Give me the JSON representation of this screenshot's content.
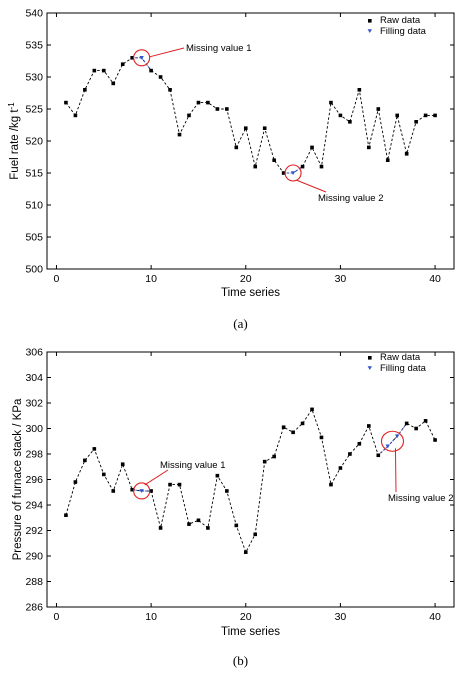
{
  "chart_data": [
    {
      "id": "a",
      "panel_label": "(a)",
      "type": "line",
      "xlabel": "Time series",
      "ylabel": "Fuel rate /kg t",
      "ylabel_sup": "-1",
      "xlim": [
        -1,
        42
      ],
      "ylim": [
        500,
        540
      ],
      "xticks": [
        0,
        10,
        20,
        30,
        40
      ],
      "yticks": [
        500,
        505,
        510,
        515,
        520,
        525,
        530,
        535,
        540
      ],
      "legend": {
        "position": "top-right",
        "raw_label": "Raw data",
        "fill_label": "Filling data"
      },
      "raw_color": "#000000",
      "fill_color": "#3355cc",
      "annotation_color": "#e02020",
      "series": [
        {
          "name": "Raw data",
          "x": [
            1,
            2,
            3,
            4,
            5,
            6,
            7,
            8,
            10,
            11,
            12,
            13,
            14,
            15,
            16,
            17,
            18,
            19,
            20,
            21,
            22,
            23,
            24,
            26,
            27,
            28,
            29,
            30,
            31,
            32,
            33,
            34,
            35,
            36,
            37,
            38,
            39,
            40
          ],
          "y": [
            526,
            524,
            528,
            531,
            531,
            529,
            532,
            533,
            531,
            530,
            528,
            521,
            524,
            526,
            526,
            525,
            525,
            519,
            522,
            516,
            522,
            517,
            515,
            516,
            519,
            516,
            526,
            524,
            523,
            528,
            519,
            525,
            517,
            524,
            518,
            523,
            524,
            524
          ]
        },
        {
          "name": "Filling data",
          "x": [
            9,
            25
          ],
          "y": [
            533,
            515
          ]
        }
      ],
      "annotations": [
        {
          "text": "Missing value 1",
          "x": 9,
          "y": 533,
          "label_side": "right"
        },
        {
          "text": "Missing value 2",
          "x": 25,
          "y": 515,
          "label_side": "below"
        }
      ]
    },
    {
      "id": "b",
      "panel_label": "(b)",
      "type": "line",
      "xlabel": "Time series",
      "ylabel": "Pressure of furnace stack / KPa",
      "ylabel_sup": "",
      "xlim": [
        -1,
        42
      ],
      "ylim": [
        286,
        306
      ],
      "xticks": [
        0,
        10,
        20,
        30,
        40
      ],
      "yticks": [
        286,
        288,
        290,
        292,
        294,
        296,
        298,
        300,
        302,
        304,
        306
      ],
      "legend": {
        "position": "top-right",
        "raw_label": "Raw data",
        "fill_label": "Filling data"
      },
      "raw_color": "#000000",
      "fill_color": "#3355cc",
      "annotation_color": "#e02020",
      "series": [
        {
          "name": "Raw data",
          "x": [
            1,
            2,
            3,
            4,
            5,
            6,
            7,
            8,
            10,
            11,
            12,
            13,
            14,
            15,
            16,
            17,
            18,
            19,
            20,
            21,
            22,
            23,
            24,
            25,
            26,
            27,
            28,
            29,
            30,
            31,
            32,
            33,
            34,
            37,
            38,
            39,
            40
          ],
          "y": [
            293.2,
            295.8,
            297.5,
            298.4,
            296.4,
            295.1,
            297.2,
            295.2,
            295.1,
            292.2,
            295.6,
            295.6,
            292.5,
            292.8,
            292.2,
            296.3,
            295.1,
            292.4,
            290.3,
            291.7,
            297.4,
            297.8,
            300.1,
            299.7,
            300.4,
            301.5,
            299.3,
            295.6,
            296.9,
            298.0,
            298.8,
            300.2,
            297.9,
            300.4,
            300.0,
            300.6,
            299.1
          ]
        },
        {
          "name": "Filling data",
          "x": [
            9,
            35,
            36
          ],
          "y": [
            295.1,
            298.6,
            299.4
          ]
        }
      ],
      "annotations": [
        {
          "text": "Missing value 1",
          "x": 9,
          "y": 295.1,
          "label_side": "above"
        },
        {
          "text": "Missing value 2",
          "x": 35.5,
          "y": 299.0,
          "label_side": "below"
        }
      ]
    }
  ]
}
